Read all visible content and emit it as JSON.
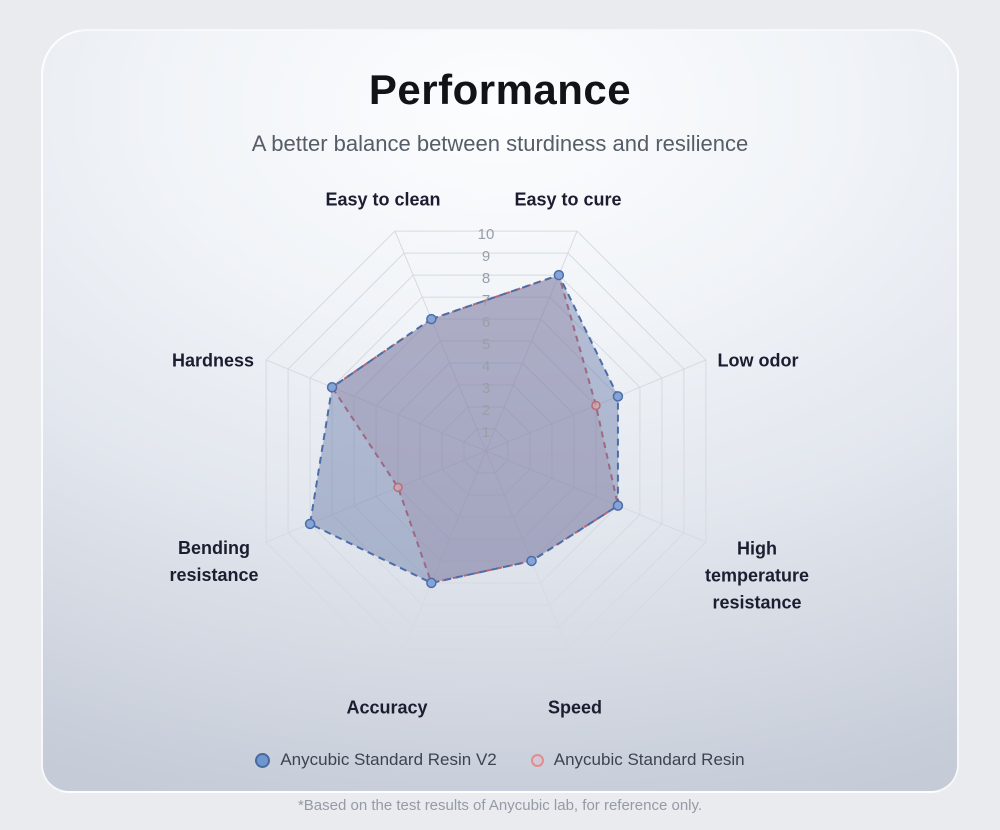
{
  "page": {
    "title": "Performance",
    "subtitle": "A better balance between sturdiness and resilience",
    "footnote": "*Based on the test results of Anycubic lab, for reference only."
  },
  "colors": {
    "card_background_light": "#fcfdfe",
    "card_background_dark": "#c5cbd7",
    "page_background": "#e9ebef",
    "grid_line": "#d6dae1",
    "tick_label": "#989fa9",
    "axis_label": "#1b1e30",
    "series_v2_line": "#4d6da8",
    "series_v2_marker_fill": "#84a4d8",
    "series_v2_fill": "rgba(93,112,163,0.42)",
    "series_v1_line": "#c9646c",
    "series_v1_marker_fill": "rgba(214,166,175,0.65)",
    "series_v1_fill": "rgba(186,118,130,0.22)"
  },
  "chart_data": {
    "type": "radar",
    "title": "Performance",
    "categories": [
      "Easy to clean",
      "Easy to cure",
      "Low odor",
      "High temperature resistance",
      "Speed",
      "Accuracy",
      "Bending resistance",
      "Hardness"
    ],
    "angles_deg_from_top": [
      -22.5,
      22.5,
      67.5,
      112.5,
      157.5,
      202.5,
      247.5,
      292.5
    ],
    "series": [
      {
        "name": "Anycubic Standard Resin V2",
        "values": [
          6,
          8,
          6,
          6,
          5,
          6,
          8,
          7
        ],
        "line_color": "#4d6da8",
        "fill_color": "rgba(93,112,163,0.42)",
        "marker_fill": "#84a4d8",
        "marker_stroke": "#4d6da8",
        "dash": "7 5"
      },
      {
        "name": "Anycubic Standard Resin",
        "values": [
          6,
          8,
          5,
          6,
          5,
          6,
          4,
          7
        ],
        "line_color": "#c9646c",
        "fill_color": "rgba(186,118,130,0.22)",
        "marker_fill": "rgba(214,166,175,0.65)",
        "marker_stroke": "#bb6b74",
        "dash": "6 5"
      }
    ],
    "ticks": [
      "1",
      "2",
      "3",
      "4",
      "5",
      "6",
      "7",
      "8",
      "9",
      "10"
    ],
    "rmin": 0,
    "rmax": 10,
    "grid": true,
    "grid_levels": 10,
    "legend_position": "bottom"
  }
}
